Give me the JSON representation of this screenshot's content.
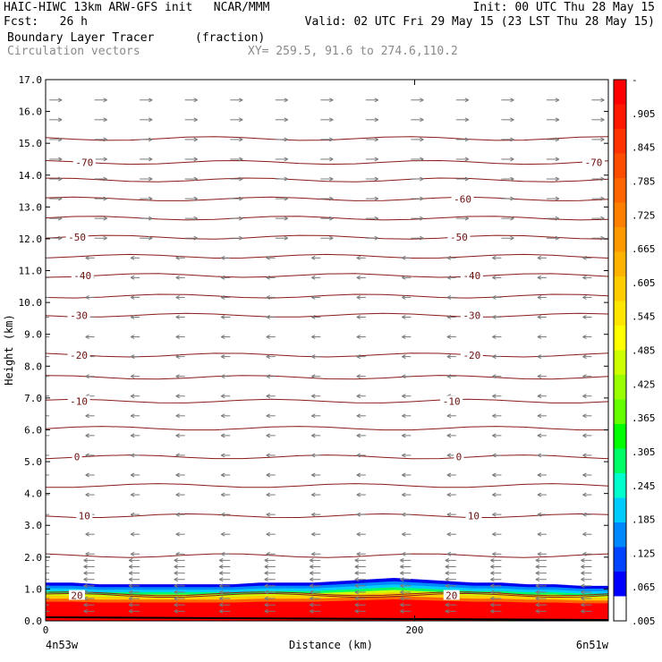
{
  "header": {
    "line1_left": "HAIC-HIWC 13km ARW-GFS init   NCAR/MMM",
    "line1_right": "Init: 00 UTC Thu 28 May 15",
    "line2_left": "Fcst:   26 h",
    "line2_right": "Valid: 02 UTC Fri 29 May 15 (23 LST Thu 28 May 15)",
    "field_label": "Boundary Layer Tracer",
    "field_units": "(fraction)",
    "overlay_label": "Circulation vectors",
    "xy_info": "XY= 259.5, 91.6 to 274.6,110.2"
  },
  "chart_data": {
    "type": "cross-section",
    "xlabel": "Distance (km)",
    "ylabel": "Height (km)",
    "xlim": [
      0,
      305
    ],
    "ylim": [
      0,
      17
    ],
    "x_ticks": [
      0,
      200
    ],
    "y_ticks": [
      "0.0",
      "1.0",
      "2.0",
      "3.0",
      "4.0",
      "5.0",
      "6.0",
      "7.0",
      "8.0",
      "9.0",
      "10.0",
      "11.0",
      "12.0",
      "13.0",
      "14.0",
      "15.0",
      "16.0",
      "17.0"
    ],
    "x_end_labels": {
      "left": "4n53w",
      "right": "6n51w"
    },
    "colorbar_labels": [
      "-",
      ".905",
      ".845",
      ".785",
      ".725",
      ".665",
      ".605",
      ".545",
      ".485",
      ".425",
      ".365",
      ".305",
      ".245",
      ".185",
      ".125",
      ".065",
      ".005"
    ],
    "colorbar_colors": [
      "#ff0000",
      "#ff1a00",
      "#ff3300",
      "#ff4d00",
      "#ff6600",
      "#ff8000",
      "#ff9900",
      "#ffb300",
      "#ffcc00",
      "#ffe600",
      "#ffff00",
      "#ccff00",
      "#99ff00",
      "#66ff00",
      "#00ff00",
      "#00ff66",
      "#00ffcc",
      "#00ccff",
      "#0088ff",
      "#0044ff",
      "#0000ff",
      "#ffffff"
    ],
    "isotherms": [
      {
        "value": 20,
        "height": 0.8,
        "labels": [
          {
            "x": 17,
            "text": "20"
          },
          {
            "x": 220,
            "text": "20"
          }
        ]
      },
      {
        "value": 10,
        "height": 3.3,
        "labels": [
          {
            "x": 21,
            "text": "10"
          },
          {
            "x": 232,
            "text": "10"
          }
        ]
      },
      {
        "value": 0,
        "height": 5.15,
        "labels": [
          {
            "x": 17,
            "text": "0"
          },
          {
            "x": 224,
            "text": "0"
          }
        ]
      },
      {
        "value": -10,
        "height": 6.9,
        "labels": [
          {
            "x": 18,
            "text": "-10"
          },
          {
            "x": 220,
            "text": "-10"
          }
        ]
      },
      {
        "value": -20,
        "height": 8.35,
        "labels": [
          {
            "x": 18,
            "text": "-20"
          },
          {
            "x": 231,
            "text": "-20"
          }
        ]
      },
      {
        "value": -30,
        "height": 9.6,
        "labels": [
          {
            "x": 18,
            "text": "-30"
          },
          {
            "x": 231,
            "text": "-30"
          }
        ]
      },
      {
        "value": -40,
        "height": 10.85,
        "labels": [
          {
            "x": 20,
            "text": "-40"
          },
          {
            "x": 231,
            "text": "-40"
          }
        ]
      },
      {
        "value": -50,
        "height": 12.05,
        "labels": [
          {
            "x": 17,
            "text": "-50"
          },
          {
            "x": 224,
            "text": "-50"
          }
        ]
      },
      {
        "value": -60,
        "height": 13.25,
        "labels": [
          {
            "x": 226,
            "text": "-60"
          }
        ]
      },
      {
        "value": -70,
        "height": 14.4,
        "labels": [
          {
            "x": 21,
            "text": "-70"
          },
          {
            "x": 297,
            "text": "-70"
          }
        ]
      }
    ],
    "extra_contours_km": [
      0.85,
      2.05,
      4.25,
      6.05,
      7.65,
      10.2,
      11.45,
      12.65,
      13.85,
      15.15
    ],
    "boundary_layer_top_km": [
      1.2,
      1.2,
      1.15,
      1.15,
      1.15,
      1.15,
      1.15,
      1.15,
      1.2,
      1.2,
      1.2,
      1.25,
      1.3,
      1.35,
      1.3,
      1.25,
      1.2,
      1.2,
      1.15,
      1.15,
      1.1,
      1.1
    ]
  }
}
